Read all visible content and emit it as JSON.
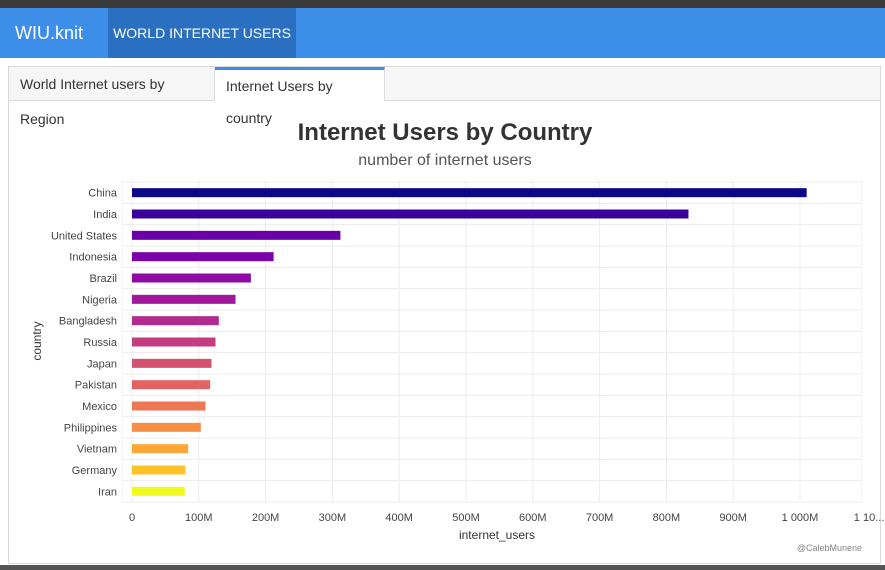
{
  "app": {
    "brand": "WIU.knit",
    "nav_tab": "WORLD INTERNET USERS"
  },
  "tabs": [
    {
      "label": "World Internet users by Region"
    },
    {
      "label": "Internet Users by country"
    }
  ],
  "chart_data": {
    "type": "bar",
    "orientation": "horizontal",
    "title": "Internet Users by Country",
    "subtitle": "number of internet users",
    "xlabel": "internet_users",
    "ylabel": "country",
    "credit": "@CalebMunene",
    "categories": [
      "China",
      "India",
      "United States",
      "Indonesia",
      "Brazil",
      "Nigeria",
      "Bangladesh",
      "Russia",
      "Japan",
      "Pakistan",
      "Mexico",
      "Philippines",
      "Vietnam",
      "Germany",
      "Iran"
    ],
    "values": [
      1010000000,
      833000000,
      312000000,
      212000000,
      178000000,
      155000000,
      130000000,
      125000000,
      119000000,
      117000000,
      110000000,
      103000000,
      84000000,
      80000000,
      79000000
    ],
    "colors": [
      "#0d0887",
      "#3a049a",
      "#6a00a8",
      "#7c03a9",
      "#8e0ba4",
      "#a0179c",
      "#b12a90",
      "#c33d80",
      "#d35171",
      "#e16462",
      "#ec7853",
      "#f58f44",
      "#fca636",
      "#fdc328",
      "#f0f921"
    ],
    "xlim": [
      0,
      1100000000
    ],
    "x_ticks": [
      0,
      100000000,
      200000000,
      300000000,
      400000000,
      500000000,
      600000000,
      700000000,
      800000000,
      900000000,
      1000000000,
      1100000000
    ],
    "x_tick_labels": [
      "0",
      "100M",
      "200M",
      "300M",
      "400M",
      "500M",
      "600M",
      "700M",
      "800M",
      "900M",
      "1 000M",
      "1 10..."
    ],
    "grid": true
  }
}
